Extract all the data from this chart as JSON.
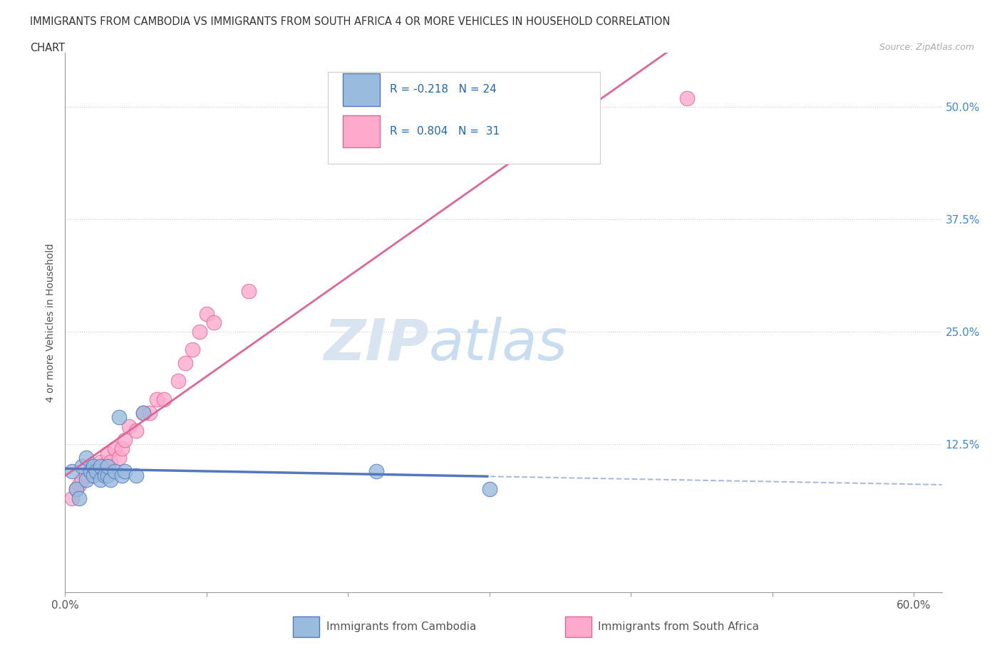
{
  "title_line1": "IMMIGRANTS FROM CAMBODIA VS IMMIGRANTS FROM SOUTH AFRICA 4 OR MORE VEHICLES IN HOUSEHOLD CORRELATION",
  "title_line2": "CHART",
  "source_text": "Source: ZipAtlas.com",
  "ylabel": "4 or more Vehicles in Household",
  "xlim": [
    0.0,
    0.62
  ],
  "ylim": [
    -0.04,
    0.56
  ],
  "ytick_positions": [
    0.125,
    0.25,
    0.375,
    0.5
  ],
  "ytick_labels": [
    "12.5%",
    "25.0%",
    "37.5%",
    "50.0%"
  ],
  "grid_color": "#cccccc",
  "background_color": "#ffffff",
  "cambodia_color": "#5577bb",
  "cambodia_fill": "#99bbdd",
  "southafrica_color": "#dd6699",
  "southafrica_fill": "#ffaacc",
  "watermark_zip": "ZIP",
  "watermark_atlas": "atlas",
  "cambodia_x": [
    0.005,
    0.008,
    0.01,
    0.012,
    0.015,
    0.015,
    0.018,
    0.02,
    0.02,
    0.022,
    0.025,
    0.025,
    0.028,
    0.03,
    0.03,
    0.032,
    0.035,
    0.038,
    0.04,
    0.042,
    0.05,
    0.055,
    0.22,
    0.3
  ],
  "cambodia_y": [
    0.095,
    0.075,
    0.065,
    0.1,
    0.085,
    0.11,
    0.095,
    0.09,
    0.1,
    0.095,
    0.085,
    0.1,
    0.09,
    0.09,
    0.1,
    0.085,
    0.095,
    0.155,
    0.09,
    0.095,
    0.09,
    0.16,
    0.095,
    0.075
  ],
  "southafrica_x": [
    0.005,
    0.008,
    0.01,
    0.012,
    0.015,
    0.018,
    0.02,
    0.022,
    0.025,
    0.025,
    0.028,
    0.03,
    0.032,
    0.035,
    0.038,
    0.04,
    0.042,
    0.045,
    0.05,
    0.055,
    0.06,
    0.065,
    0.07,
    0.08,
    0.085,
    0.09,
    0.095,
    0.1,
    0.105,
    0.13,
    0.44
  ],
  "southafrica_y": [
    0.065,
    0.075,
    0.08,
    0.085,
    0.09,
    0.095,
    0.09,
    0.095,
    0.095,
    0.105,
    0.1,
    0.115,
    0.105,
    0.12,
    0.11,
    0.12,
    0.13,
    0.145,
    0.14,
    0.16,
    0.16,
    0.175,
    0.175,
    0.195,
    0.215,
    0.23,
    0.25,
    0.27,
    0.26,
    0.295,
    0.51
  ]
}
